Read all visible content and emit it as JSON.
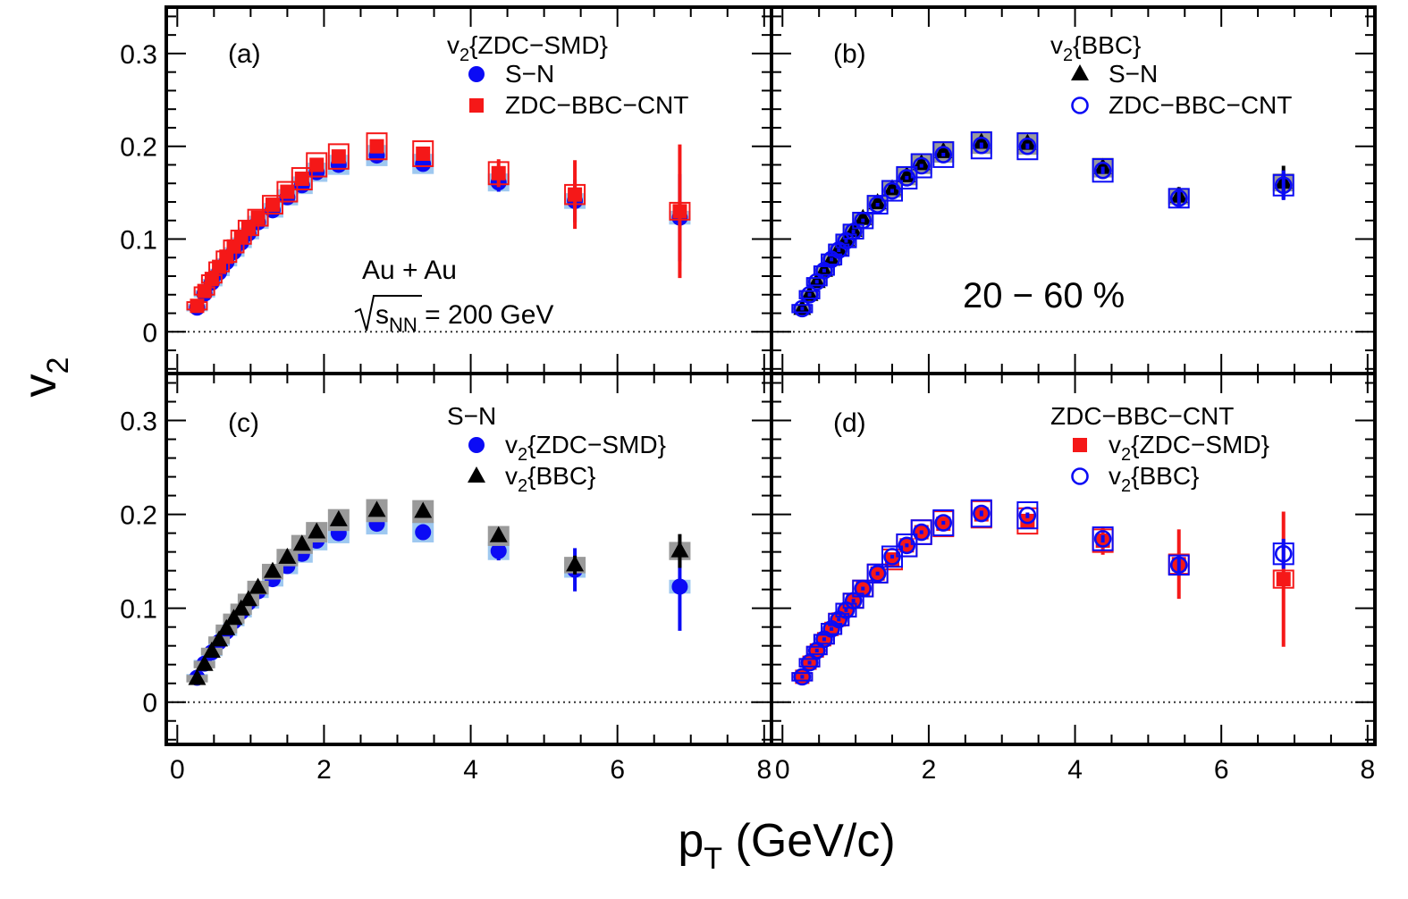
{
  "axes": {
    "xlabel": "p",
    "xlabel_sub": "T",
    "xlabel_units": " (GeV/c)",
    "ylabel": "v",
    "ylabel_sub": "2",
    "xlim": [
      -0.15,
      8.1
    ],
    "ylim": [
      -0.045,
      0.35
    ],
    "x_ticks": [
      "0",
      "2",
      "4",
      "6",
      "8"
    ],
    "y_ticks": [
      "0",
      "0.1",
      "0.2",
      "0.3"
    ]
  },
  "annotations": {
    "system": "Au + Au",
    "energy_pre": "s",
    "energy_sub": "NN",
    "energy_post": " = 200 GeV",
    "centrality": "20 − 60 %"
  },
  "colors": {
    "blue": "#0b0bf5",
    "red": "#f51818",
    "black": "#000000",
    "blue_sys": "#9ec8f0",
    "gray_sys": "#9a9a9a"
  },
  "chart_data": [
    {
      "type": "scatter",
      "panel_label": "(a)",
      "legend_title": "v{ZDC−SMD}",
      "legend_title_sub": "2",
      "legend_title_prefix": "v",
      "legend_title_rest": "{ZDC−SMD}",
      "series": [
        {
          "name": "S−N",
          "marker": "circle",
          "color": "#0b0bf5",
          "sys": "fill-blue",
          "x": [
            0.27,
            0.37,
            0.47,
            0.57,
            0.67,
            0.77,
            0.87,
            0.97,
            1.1,
            1.3,
            1.5,
            1.7,
            1.9,
            2.2,
            2.72,
            3.35,
            4.38,
            5.42,
            6.85
          ],
          "y": [
            0.026,
            0.041,
            0.053,
            0.064,
            0.075,
            0.086,
            0.096,
            0.106,
            0.118,
            0.131,
            0.145,
            0.158,
            0.172,
            0.18,
            0.19,
            0.181,
            0.161,
            0.141,
            0.123
          ],
          "err": [
            0.003,
            0.002,
            0.002,
            0.002,
            0.002,
            0.002,
            0.002,
            0.002,
            0.002,
            0.002,
            0.002,
            0.002,
            0.002,
            0.003,
            0.004,
            0.005,
            0.01,
            0.023,
            0.047
          ]
        },
        {
          "name": "ZDC−BBC−CNT",
          "marker": "square",
          "color": "#f51818",
          "sys": "box-red",
          "x": [
            0.27,
            0.37,
            0.47,
            0.57,
            0.67,
            0.77,
            0.87,
            0.97,
            1.1,
            1.3,
            1.5,
            1.7,
            1.9,
            2.2,
            2.72,
            3.35,
            4.38,
            5.42,
            6.85
          ],
          "y": [
            0.028,
            0.044,
            0.057,
            0.07,
            0.081,
            0.092,
            0.102,
            0.112,
            0.123,
            0.137,
            0.151,
            0.165,
            0.18,
            0.189,
            0.2,
            0.192,
            0.171,
            0.148,
            0.13
          ],
          "err": [
            0.004,
            0.003,
            0.002,
            0.002,
            0.002,
            0.002,
            0.002,
            0.002,
            0.002,
            0.002,
            0.002,
            0.003,
            0.003,
            0.004,
            0.005,
            0.006,
            0.015,
            0.037,
            0.072
          ]
        }
      ]
    },
    {
      "type": "scatter",
      "panel_label": "(b)",
      "legend_title_prefix": "v",
      "legend_title_sub": "2",
      "legend_title_rest": "{BBC}",
      "series": [
        {
          "name": "S−N",
          "marker": "triangle",
          "color": "#000000",
          "sys": "fill-gray",
          "x": [
            0.27,
            0.37,
            0.47,
            0.57,
            0.67,
            0.77,
            0.87,
            0.97,
            1.1,
            1.3,
            1.5,
            1.7,
            1.9,
            2.2,
            2.72,
            3.35,
            4.38,
            5.42,
            6.85
          ],
          "y": [
            0.025,
            0.04,
            0.054,
            0.066,
            0.078,
            0.089,
            0.099,
            0.109,
            0.122,
            0.139,
            0.154,
            0.168,
            0.181,
            0.194,
            0.204,
            0.203,
            0.177,
            0.146,
            0.161
          ],
          "err": [
            0.003,
            0.002,
            0.002,
            0.002,
            0.002,
            0.002,
            0.002,
            0.002,
            0.002,
            0.002,
            0.002,
            0.002,
            0.002,
            0.002,
            0.003,
            0.003,
            0.005,
            0.01,
            0.018
          ]
        },
        {
          "name": "ZDC−BBC−CNT",
          "marker": "open-circle",
          "color": "#0b0bf5",
          "sys": "box-blue",
          "x": [
            0.27,
            0.37,
            0.47,
            0.57,
            0.67,
            0.77,
            0.87,
            0.97,
            1.1,
            1.3,
            1.5,
            1.7,
            1.9,
            2.2,
            2.72,
            3.35,
            4.38,
            5.42,
            6.85
          ],
          "y": [
            0.025,
            0.04,
            0.054,
            0.066,
            0.078,
            0.088,
            0.098,
            0.108,
            0.12,
            0.137,
            0.152,
            0.166,
            0.179,
            0.191,
            0.201,
            0.2,
            0.174,
            0.144,
            0.158
          ],
          "err": [
            0.002,
            0.002,
            0.002,
            0.002,
            0.002,
            0.002,
            0.002,
            0.002,
            0.002,
            0.002,
            0.002,
            0.002,
            0.002,
            0.002,
            0.003,
            0.003,
            0.004,
            0.008,
            0.016
          ]
        }
      ]
    },
    {
      "type": "scatter",
      "panel_label": "(c)",
      "legend_title": "S−N",
      "series": [
        {
          "name_prefix": "v",
          "name_sub": "2",
          "name_rest": "{ZDC−SMD}",
          "marker": "circle",
          "color": "#0b0bf5",
          "sys": "fill-blue",
          "x": [
            0.27,
            0.37,
            0.47,
            0.57,
            0.67,
            0.77,
            0.87,
            0.97,
            1.1,
            1.3,
            1.5,
            1.7,
            1.9,
            2.2,
            2.72,
            3.35,
            4.38,
            5.42,
            6.85
          ],
          "y": [
            0.026,
            0.041,
            0.053,
            0.064,
            0.075,
            0.086,
            0.096,
            0.106,
            0.118,
            0.131,
            0.145,
            0.158,
            0.172,
            0.18,
            0.19,
            0.181,
            0.161,
            0.141,
            0.123
          ],
          "err": [
            0.003,
            0.002,
            0.002,
            0.002,
            0.002,
            0.002,
            0.002,
            0.002,
            0.002,
            0.002,
            0.002,
            0.002,
            0.002,
            0.003,
            0.004,
            0.005,
            0.01,
            0.023,
            0.047
          ]
        },
        {
          "name_prefix": "v",
          "name_sub": "2",
          "name_rest": "{BBC}",
          "marker": "triangle",
          "color": "#000000",
          "sys": "fill-gray",
          "x": [
            0.27,
            0.37,
            0.47,
            0.57,
            0.67,
            0.77,
            0.87,
            0.97,
            1.1,
            1.3,
            1.5,
            1.7,
            1.9,
            2.2,
            2.72,
            3.35,
            4.38,
            5.42,
            6.85
          ],
          "y": [
            0.025,
            0.04,
            0.054,
            0.066,
            0.078,
            0.089,
            0.099,
            0.109,
            0.122,
            0.139,
            0.154,
            0.168,
            0.181,
            0.194,
            0.204,
            0.203,
            0.177,
            0.146,
            0.161
          ],
          "err": [
            0.003,
            0.002,
            0.002,
            0.002,
            0.002,
            0.002,
            0.002,
            0.002,
            0.002,
            0.002,
            0.002,
            0.002,
            0.002,
            0.002,
            0.003,
            0.003,
            0.005,
            0.01,
            0.018
          ]
        }
      ]
    },
    {
      "type": "scatter",
      "panel_label": "(d)",
      "legend_title": "ZDC−BBC−CNT",
      "series": [
        {
          "name_prefix": "v",
          "name_sub": "2",
          "name_rest": "{ZDC−SMD}",
          "marker": "square",
          "color": "#f51818",
          "sys": "box-red",
          "x": [
            0.27,
            0.37,
            0.47,
            0.57,
            0.67,
            0.77,
            0.87,
            0.97,
            1.1,
            1.3,
            1.5,
            1.7,
            1.9,
            2.2,
            2.72,
            3.35,
            4.38,
            5.42,
            6.85
          ],
          "y": [
            0.027,
            0.042,
            0.055,
            0.067,
            0.078,
            0.088,
            0.098,
            0.108,
            0.121,
            0.137,
            0.152,
            0.167,
            0.181,
            0.19,
            0.2,
            0.193,
            0.172,
            0.147,
            0.131
          ],
          "err": [
            0.004,
            0.003,
            0.002,
            0.002,
            0.002,
            0.002,
            0.002,
            0.002,
            0.002,
            0.002,
            0.002,
            0.003,
            0.003,
            0.004,
            0.005,
            0.006,
            0.015,
            0.037,
            0.072
          ]
        },
        {
          "name_prefix": "v",
          "name_sub": "2",
          "name_rest": "{BBC}",
          "marker": "open-circle",
          "color": "#0b0bf5",
          "sys": "box-blue",
          "x": [
            0.27,
            0.37,
            0.47,
            0.57,
            0.67,
            0.77,
            0.87,
            0.97,
            1.1,
            1.3,
            1.5,
            1.7,
            1.9,
            2.2,
            2.72,
            3.35,
            4.38,
            5.42,
            6.85
          ],
          "y": [
            0.027,
            0.042,
            0.055,
            0.067,
            0.078,
            0.088,
            0.098,
            0.108,
            0.121,
            0.137,
            0.155,
            0.167,
            0.181,
            0.191,
            0.201,
            0.199,
            0.174,
            0.146,
            0.158
          ],
          "err": [
            0.002,
            0.002,
            0.002,
            0.002,
            0.002,
            0.002,
            0.002,
            0.002,
            0.002,
            0.002,
            0.002,
            0.002,
            0.002,
            0.002,
            0.003,
            0.003,
            0.004,
            0.008,
            0.016
          ]
        }
      ]
    }
  ]
}
